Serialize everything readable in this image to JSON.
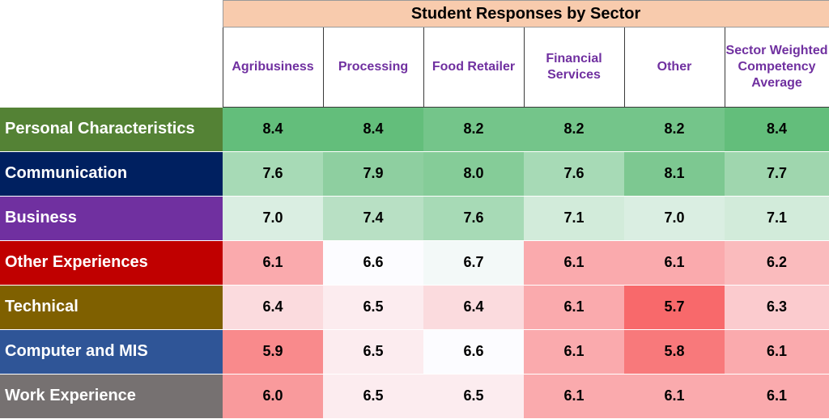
{
  "chart_data": {
    "type": "heatmap",
    "title": "Student Responses by Sector",
    "columns": [
      "Agribusiness",
      "Processing",
      "Food Retailer",
      "Financial Services",
      "Other",
      "Sector Weighted Competency Average"
    ],
    "rows": [
      {
        "name": "Personal Characteristics",
        "color": "#548235",
        "values": [
          8.4,
          8.4,
          8.2,
          8.2,
          8.2,
          8.4
        ]
      },
      {
        "name": "Communication",
        "color": "#002060",
        "values": [
          7.6,
          7.9,
          8.0,
          7.6,
          8.1,
          7.7
        ]
      },
      {
        "name": "Business",
        "color": "#7030a0",
        "values": [
          7.0,
          7.4,
          7.6,
          7.1,
          7.0,
          7.1
        ]
      },
      {
        "name": "Other Experiences",
        "color": "#c00000",
        "values": [
          6.1,
          6.6,
          6.7,
          6.1,
          6.1,
          6.2
        ]
      },
      {
        "name": "Technical",
        "color": "#7f6000",
        "values": [
          6.4,
          6.5,
          6.4,
          6.1,
          5.7,
          6.3
        ]
      },
      {
        "name": "Computer and MIS",
        "color": "#2f5597",
        "values": [
          5.9,
          6.5,
          6.6,
          6.1,
          5.8,
          6.1
        ]
      },
      {
        "name": "Work Experience",
        "color": "#767171",
        "values": [
          6.0,
          6.5,
          6.5,
          6.1,
          6.1,
          6.1
        ]
      }
    ],
    "color_scale": {
      "low": "#f8696b",
      "mid": "#fcfcff",
      "high": "#63be7b",
      "min": 5.7,
      "mid_value": 6.6,
      "max": 8.4
    }
  }
}
